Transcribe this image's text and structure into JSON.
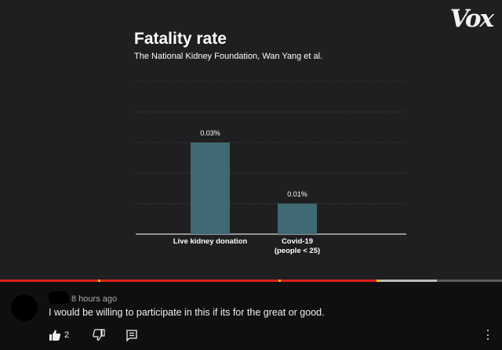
{
  "video": {
    "logo": "Vox",
    "progress": {
      "played_fraction": 0.75,
      "buffered_fraction": 0.87,
      "ad_markers": [
        0.195,
        0.555,
        0.75
      ]
    }
  },
  "chart_data": {
    "type": "bar",
    "title": "Fatality rate",
    "subtitle": "The National Kidney Foundation, Wan Yang et al.",
    "categories": [
      [
        "Live kidney donation"
      ],
      [
        "Covid-19",
        "(people < 25)"
      ]
    ],
    "values": [
      0.03,
      0.01
    ],
    "data_labels": [
      "0.03%",
      "0.01%"
    ],
    "ylim": [
      0,
      0.05
    ],
    "grid": true,
    "colors": {
      "bar": "#3f6a73"
    }
  },
  "comment": {
    "time": "8 hours ago",
    "text": "I would be willing to participate in this if its for the great or good.",
    "like_count": "2",
    "icons": [
      "thumbs-up-icon",
      "thumbs-down-icon",
      "reply-icon",
      "more-vert-icon"
    ]
  }
}
